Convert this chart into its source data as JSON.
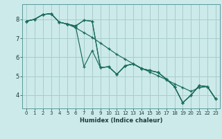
{
  "xlabel": "Humidex (Indice chaleur)",
  "bg_color": "#cceaea",
  "grid_color": "#aacccc",
  "line_color": "#1a6b5a",
  "xlim": [
    -0.5,
    23.5
  ],
  "ylim": [
    3.3,
    8.8
  ],
  "xticks": [
    0,
    1,
    2,
    3,
    4,
    5,
    6,
    7,
    8,
    9,
    10,
    11,
    12,
    13,
    14,
    15,
    16,
    17,
    18,
    19,
    20,
    21,
    22,
    23
  ],
  "yticks": [
    4,
    5,
    6,
    7,
    8
  ],
  "s1": [
    7.9,
    8.0,
    8.25,
    8.3,
    7.85,
    7.75,
    7.55,
    7.3,
    7.05,
    6.75,
    6.45,
    6.15,
    5.9,
    5.65,
    5.42,
    5.22,
    5.02,
    4.82,
    4.6,
    4.4,
    4.2,
    4.4,
    4.45,
    3.8
  ],
  "s2": [
    7.9,
    8.0,
    8.25,
    8.3,
    7.85,
    7.75,
    7.6,
    5.5,
    6.35,
    5.45,
    5.5,
    5.1,
    5.55,
    5.65,
    5.4,
    5.3,
    5.2,
    4.85,
    4.45,
    3.6,
    4.0,
    4.5,
    4.45,
    3.8
  ],
  "s3": [
    7.9,
    8.0,
    8.25,
    8.3,
    7.85,
    7.75,
    7.65,
    7.95,
    7.9,
    5.45,
    5.5,
    5.1,
    5.55,
    5.65,
    5.4,
    5.3,
    5.2,
    4.85,
    4.45,
    3.6,
    4.0,
    4.5,
    4.45,
    3.8
  ],
  "s4": [
    7.9,
    8.0,
    8.25,
    8.3,
    7.85,
    7.75,
    7.65,
    7.95,
    7.9,
    5.45,
    5.5,
    5.1,
    5.55,
    5.65,
    5.4,
    5.3,
    5.2,
    4.85,
    4.45,
    3.6,
    4.0,
    4.5,
    4.45,
    3.8
  ],
  "xlabel_fontsize": 6.0,
  "tick_fontsize_x": 5.0,
  "tick_fontsize_y": 6.0
}
